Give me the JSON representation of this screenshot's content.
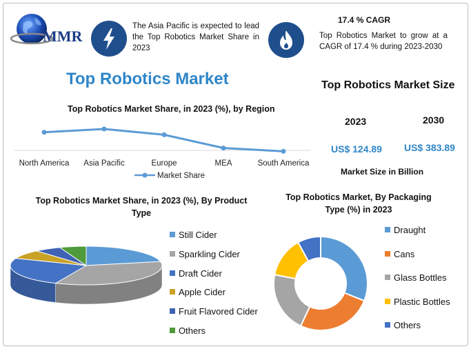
{
  "logo": {
    "text": "MMR",
    "icon": "globe-icon"
  },
  "highlights": [
    {
      "icon": "lightning-bolt-icon",
      "text": "The Asia Pacific is expected to lead the Top Robotics Market Share in 2023"
    },
    {
      "icon": "flame-icon",
      "title": "17.4 % CAGR",
      "text": "Top Robotics Market to grow at a CAGR of 17.4 % during 2023-2030"
    }
  ],
  "main_title": "Top Robotics Market",
  "market_size": {
    "title": "Top Robotics Market Size",
    "items": [
      {
        "year": "2023",
        "value": "US$ 124.89"
      },
      {
        "year": "2030",
        "value": "US$ 383.89"
      }
    ],
    "unit_label": "Market Size in Billion"
  },
  "colors": {
    "blue": "#5b9bd5",
    "orange": "#ed7d31",
    "gray": "#a5a5a5",
    "yellow": "#ffc000",
    "dark_blue": "#4472c4",
    "green": "#70ad47",
    "title_blue": "#2e86c8",
    "icon_bg": "#1f4e8c"
  },
  "chart_data": [
    {
      "type": "line",
      "title": "Top Robotics Market Share, in 2023 (%), by Region",
      "categories": [
        "North America",
        "Asia Pacific",
        "Europe",
        "MEA",
        "South America"
      ],
      "series": [
        {
          "name": "Market Share",
          "values": [
            36,
            40,
            33,
            17,
            13
          ],
          "color": "#5b9bd5"
        }
      ],
      "ylim": [
        0,
        50
      ],
      "grid": false,
      "legend": "bottom"
    },
    {
      "type": "pie",
      "title": "Top Robotics Market Share, in 2023 (%), By Product Type",
      "categories": [
        "Still Cider",
        "Sparkling Cider",
        "Draft Cider",
        "Apple Cider",
        "Fruit Flavored Cider",
        "Others"
      ],
      "values": [
        23,
        37,
        26,
        8,
        6,
        6
      ],
      "colors": [
        "#5b9bd5",
        "#a5a5a5",
        "#4472c4",
        "#c9a227",
        "#3f62b5",
        "#4f9a3a"
      ],
      "legend": "right"
    },
    {
      "type": "pie",
      "title": "Top Robotics Market, By Packaging Type (%) in 2023",
      "categories": [
        "Draught",
        "Cans",
        "Glass Bottles",
        "Plastic Bottles",
        "Others"
      ],
      "values": [
        31,
        26,
        21,
        14,
        8
      ],
      "colors": [
        "#5b9bd5",
        "#ed7d31",
        "#a5a5a5",
        "#ffc000",
        "#4472c4"
      ],
      "legend": "right"
    }
  ]
}
